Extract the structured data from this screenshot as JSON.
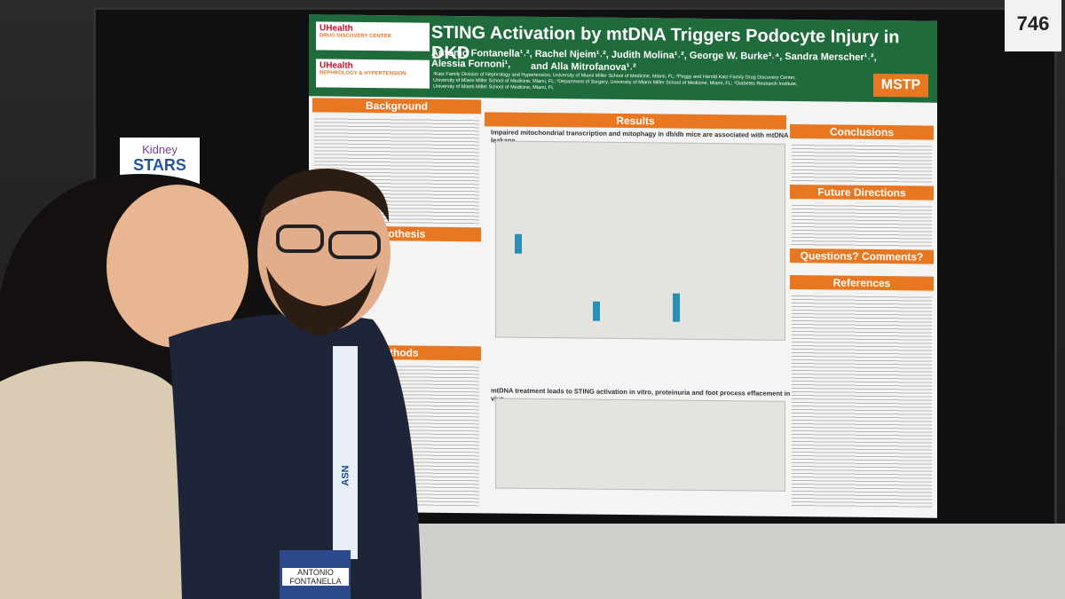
{
  "booth": {
    "number": "746"
  },
  "sign": {
    "line1": "Kidney",
    "line2": "STARS"
  },
  "poster": {
    "logos": {
      "uhealth": "UHealth",
      "center1": "DRUG DISCOVERY CENTER",
      "center2": "NEPHROLOGY & HYPERTENSION",
      "mstp": "MSTP"
    },
    "title": "STING Activation by mtDNA Triggers Podocyte Injury in DKD",
    "authors": "Antonio Fontanella¹˒², Rachel Njeim¹˒², Judith Molina¹˒², George W. Burke³˒⁴, Sandra Merscher¹˒², Alessia Fornoni¹,",
    "authors2": "and Alla Mitrofanova¹˒²",
    "affiliation1": "¹Katz Family Division of Nephrology and Hypertension, University of Miami Miller School of Medicine, Miami, FL; ²Peggy and Harold Katz Family Drug Discovery Center,",
    "affiliation2": "University of Miami Miller School of Medicine, Miami, FL; ³Department of Surgery, University of Miami Miller School of Medicine, Miami, FL; ⁴Diabetes Research Institute,",
    "affiliation3": "University of Miami Miller School of Medicine, Miami, FL",
    "sections": {
      "background": "Background",
      "results": "Results",
      "conclusions": "Conclusions",
      "future": "Future Directions",
      "questions": "Questions? Comments?",
      "references": "References",
      "hypothesis": "Hypothesis",
      "methods": "Methods"
    },
    "results_heading1": "Impaired mitochondrial transcription and mitophagy in db/db mice are associated with mtDNA leakage",
    "results_heading2": "mtDNA treatment leads to STING activation in vitro, proteinuria and foot process effacement in vivo"
  },
  "badge": {
    "lanyard": "ASN",
    "name1": "ANTONIO",
    "name2": "FONTANELLA"
  }
}
